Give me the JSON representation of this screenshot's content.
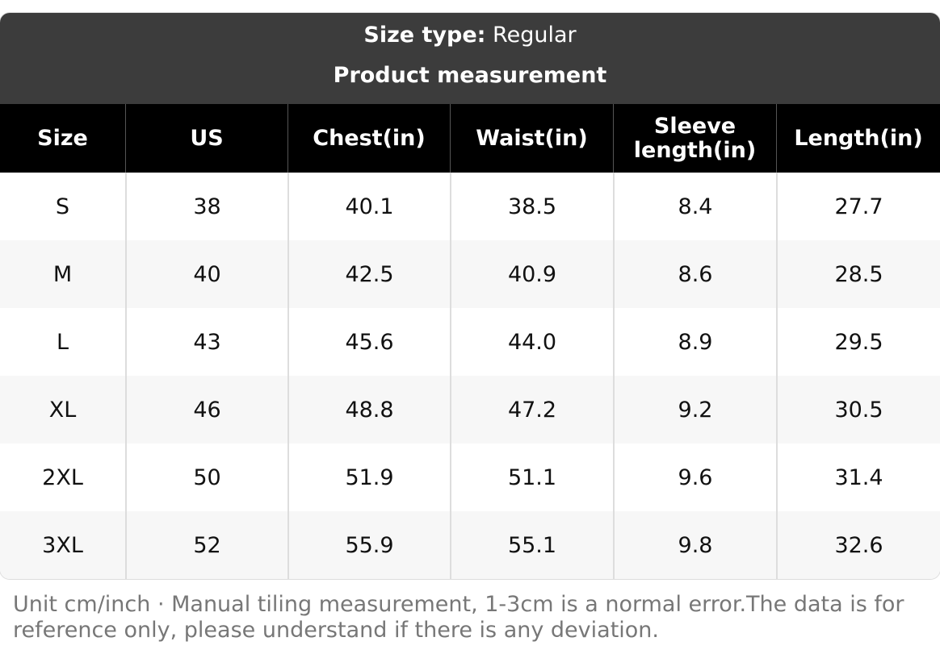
{
  "header": {
    "size_type_label": "Size type:",
    "size_type_value": "Regular",
    "title": "Product measurement"
  },
  "table": {
    "columns": [
      "Size",
      "US",
      "Chest(in)",
      "Waist(in)",
      "Sleeve length(in)",
      "Length(in)"
    ],
    "rows": [
      [
        "S",
        "38",
        "40.1",
        "38.5",
        "8.4",
        "27.7"
      ],
      [
        "M",
        "40",
        "42.5",
        "40.9",
        "8.6",
        "28.5"
      ],
      [
        "L",
        "43",
        "45.6",
        "44.0",
        "8.9",
        "29.5"
      ],
      [
        "XL",
        "46",
        "48.8",
        "47.2",
        "9.2",
        "30.5"
      ],
      [
        "2XL",
        "50",
        "51.9",
        "51.1",
        "9.6",
        "31.4"
      ],
      [
        "3XL",
        "52",
        "55.9",
        "55.1",
        "9.8",
        "32.6"
      ]
    ]
  },
  "footer": {
    "note": "Unit cm/inch · Manual tiling measurement, 1-3cm is a normal error.The data is for reference only, please understand if there is any deviation."
  }
}
